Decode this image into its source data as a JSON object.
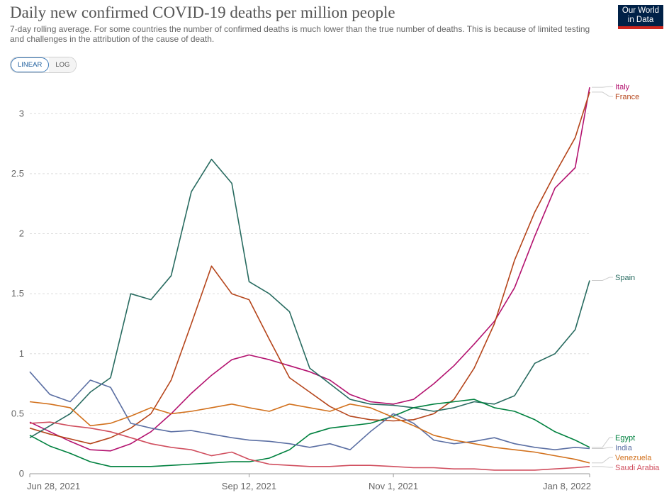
{
  "header": {
    "title": "Daily new confirmed COVID-19 deaths per million people",
    "subtitle": "7-day rolling average. For some countries the number of confirmed deaths is much lower than the true number of deaths. This is because of limited testing and challenges in the attribution of the cause of death."
  },
  "logo": {
    "line1": "Our World",
    "line2": "in Data"
  },
  "scale_toggle": {
    "linear_label": "LINEAR",
    "log_label": "LOG",
    "selected": "LINEAR"
  },
  "chart_data": {
    "type": "line",
    "title": "Daily new confirmed COVID-19 deaths per million people",
    "xlabel": "",
    "ylabel": "",
    "x_range": [
      "2021-06-28",
      "2022-01-08"
    ],
    "x_ticks": [
      "Jun 28, 2021",
      "Sep 12, 2021",
      "Nov 1, 2021",
      "Jan 8, 2022"
    ],
    "y_range": [
      0,
      3.25
    ],
    "y_ticks": [
      "0",
      "0.5",
      "1",
      "1.5",
      "2",
      "2.5",
      "3"
    ],
    "grid": "horizontal dashed",
    "legend_position": "right end labels",
    "series": [
      {
        "name": "Italy",
        "color": "#b3126f",
        "x": [
          "2021-06-28",
          "2021-07-05",
          "2021-07-12",
          "2021-07-19",
          "2021-07-26",
          "2021-08-02",
          "2021-08-09",
          "2021-08-16",
          "2021-08-23",
          "2021-08-30",
          "2021-09-06",
          "2021-09-12",
          "2021-09-19",
          "2021-09-26",
          "2021-10-03",
          "2021-10-10",
          "2021-10-17",
          "2021-10-24",
          "2021-11-01",
          "2021-11-08",
          "2021-11-15",
          "2021-11-22",
          "2021-11-29",
          "2021-12-06",
          "2021-12-13",
          "2021-12-20",
          "2021-12-27",
          "2022-01-03",
          "2022-01-08"
        ],
        "y": [
          0.43,
          0.35,
          0.27,
          0.2,
          0.19,
          0.25,
          0.35,
          0.5,
          0.67,
          0.82,
          0.95,
          0.99,
          0.95,
          0.9,
          0.85,
          0.78,
          0.66,
          0.6,
          0.58,
          0.62,
          0.75,
          0.9,
          1.08,
          1.27,
          1.55,
          1.98,
          2.38,
          2.55,
          3.22
        ]
      },
      {
        "name": "France",
        "color": "#b5451b",
        "x": [
          "2021-06-28",
          "2021-07-05",
          "2021-07-12",
          "2021-07-19",
          "2021-07-26",
          "2021-08-02",
          "2021-08-09",
          "2021-08-16",
          "2021-08-23",
          "2021-08-30",
          "2021-09-06",
          "2021-09-12",
          "2021-09-19",
          "2021-09-26",
          "2021-10-03",
          "2021-10-10",
          "2021-10-17",
          "2021-10-24",
          "2021-11-01",
          "2021-11-08",
          "2021-11-15",
          "2021-11-22",
          "2021-11-29",
          "2021-12-06",
          "2021-12-13",
          "2021-12-20",
          "2021-12-27",
          "2022-01-03",
          "2022-01-08"
        ],
        "y": [
          0.38,
          0.33,
          0.29,
          0.25,
          0.3,
          0.38,
          0.5,
          0.78,
          1.25,
          1.73,
          1.5,
          1.45,
          1.12,
          0.8,
          0.68,
          0.56,
          0.48,
          0.45,
          0.44,
          0.45,
          0.5,
          0.62,
          0.88,
          1.25,
          1.78,
          2.18,
          2.5,
          2.8,
          3.18
        ]
      },
      {
        "name": "Spain",
        "color": "#286b60",
        "x": [
          "2021-06-28",
          "2021-07-05",
          "2021-07-12",
          "2021-07-19",
          "2021-07-26",
          "2021-08-02",
          "2021-08-09",
          "2021-08-16",
          "2021-08-23",
          "2021-08-30",
          "2021-09-06",
          "2021-09-12",
          "2021-09-19",
          "2021-09-26",
          "2021-10-03",
          "2021-10-10",
          "2021-10-17",
          "2021-10-24",
          "2021-11-01",
          "2021-11-08",
          "2021-11-15",
          "2021-11-22",
          "2021-11-29",
          "2021-12-06",
          "2021-12-13",
          "2021-12-20",
          "2021-12-27",
          "2022-01-03",
          "2022-01-08"
        ],
        "y": [
          0.3,
          0.4,
          0.5,
          0.68,
          0.8,
          1.5,
          1.45,
          1.65,
          2.35,
          2.62,
          2.42,
          1.6,
          1.5,
          1.35,
          0.88,
          0.75,
          0.62,
          0.58,
          0.57,
          0.55,
          0.52,
          0.55,
          0.6,
          0.58,
          0.65,
          0.92,
          1.0,
          1.2,
          1.61
        ]
      },
      {
        "name": "Egypt",
        "color": "#00813f",
        "x": [
          "2021-06-28",
          "2021-07-05",
          "2021-07-12",
          "2021-07-19",
          "2021-07-26",
          "2021-08-02",
          "2021-08-09",
          "2021-08-16",
          "2021-08-23",
          "2021-08-30",
          "2021-09-06",
          "2021-09-12",
          "2021-09-19",
          "2021-09-26",
          "2021-10-03",
          "2021-10-10",
          "2021-10-17",
          "2021-10-24",
          "2021-11-01",
          "2021-11-08",
          "2021-11-15",
          "2021-11-22",
          "2021-11-29",
          "2021-12-06",
          "2021-12-13",
          "2021-12-20",
          "2021-12-27",
          "2022-01-03",
          "2022-01-08"
        ],
        "y": [
          0.32,
          0.23,
          0.17,
          0.1,
          0.06,
          0.06,
          0.06,
          0.07,
          0.08,
          0.09,
          0.1,
          0.1,
          0.13,
          0.2,
          0.33,
          0.38,
          0.4,
          0.42,
          0.48,
          0.55,
          0.58,
          0.6,
          0.62,
          0.55,
          0.52,
          0.45,
          0.35,
          0.28,
          0.22
        ]
      },
      {
        "name": "India",
        "color": "#5b6fa3",
        "x": [
          "2021-06-28",
          "2021-07-05",
          "2021-07-12",
          "2021-07-19",
          "2021-07-26",
          "2021-08-02",
          "2021-08-09",
          "2021-08-16",
          "2021-08-23",
          "2021-08-30",
          "2021-09-06",
          "2021-09-12",
          "2021-09-19",
          "2021-09-26",
          "2021-10-03",
          "2021-10-10",
          "2021-10-17",
          "2021-10-24",
          "2021-11-01",
          "2021-11-08",
          "2021-11-15",
          "2021-11-22",
          "2021-11-29",
          "2021-12-06",
          "2021-12-13",
          "2021-12-20",
          "2021-12-27",
          "2022-01-03",
          "2022-01-08"
        ],
        "y": [
          0.85,
          0.66,
          0.6,
          0.78,
          0.72,
          0.42,
          0.38,
          0.35,
          0.36,
          0.33,
          0.3,
          0.28,
          0.27,
          0.25,
          0.22,
          0.25,
          0.2,
          0.35,
          0.5,
          0.42,
          0.28,
          0.25,
          0.27,
          0.3,
          0.25,
          0.22,
          0.2,
          0.22,
          0.21
        ]
      },
      {
        "name": "Venezuela",
        "color": "#d2711d",
        "x": [
          "2021-06-28",
          "2021-07-05",
          "2021-07-12",
          "2021-07-19",
          "2021-07-26",
          "2021-08-02",
          "2021-08-09",
          "2021-08-16",
          "2021-08-23",
          "2021-08-30",
          "2021-09-06",
          "2021-09-12",
          "2021-09-19",
          "2021-09-26",
          "2021-10-03",
          "2021-10-10",
          "2021-10-17",
          "2021-10-24",
          "2021-11-01",
          "2021-11-08",
          "2021-11-15",
          "2021-11-22",
          "2021-11-29",
          "2021-12-06",
          "2021-12-13",
          "2021-12-20",
          "2021-12-27",
          "2022-01-03",
          "2022-01-08"
        ],
        "y": [
          0.6,
          0.58,
          0.55,
          0.4,
          0.42,
          0.48,
          0.55,
          0.5,
          0.52,
          0.55,
          0.58,
          0.55,
          0.52,
          0.58,
          0.55,
          0.52,
          0.58,
          0.55,
          0.47,
          0.4,
          0.32,
          0.28,
          0.25,
          0.22,
          0.2,
          0.18,
          0.15,
          0.12,
          0.09
        ]
      },
      {
        "name": "Saudi Arabia",
        "color": "#d04e5e",
        "x": [
          "2021-06-28",
          "2021-07-05",
          "2021-07-12",
          "2021-07-19",
          "2021-07-26",
          "2021-08-02",
          "2021-08-09",
          "2021-08-16",
          "2021-08-23",
          "2021-08-30",
          "2021-09-06",
          "2021-09-12",
          "2021-09-19",
          "2021-09-26",
          "2021-10-03",
          "2021-10-10",
          "2021-10-17",
          "2021-10-24",
          "2021-11-01",
          "2021-11-08",
          "2021-11-15",
          "2021-11-22",
          "2021-11-29",
          "2021-12-06",
          "2021-12-13",
          "2021-12-20",
          "2021-12-27",
          "2022-01-03",
          "2022-01-08"
        ],
        "y": [
          0.42,
          0.43,
          0.4,
          0.38,
          0.35,
          0.3,
          0.25,
          0.22,
          0.2,
          0.15,
          0.18,
          0.12,
          0.08,
          0.07,
          0.06,
          0.06,
          0.07,
          0.07,
          0.06,
          0.05,
          0.05,
          0.04,
          0.04,
          0.03,
          0.03,
          0.03,
          0.04,
          0.05,
          0.06
        ]
      }
    ]
  }
}
